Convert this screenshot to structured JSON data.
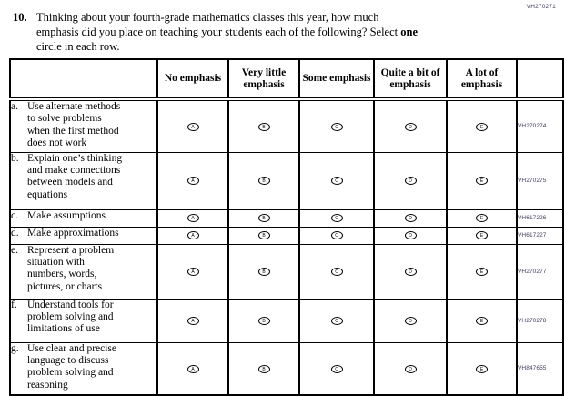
{
  "page": {
    "top_code": "VH270271",
    "question": {
      "number": "10.",
      "line1": "Thinking about your fourth-grade mathematics classes this year, how much",
      "line2_pre": "emphasis did you place on teaching your students each of the following? Select ",
      "line2_bold": "one",
      "line3": "circle in each row."
    }
  },
  "table": {
    "columns": [
      "No emphasis",
      "Very little emphasis",
      "Some emphasis",
      "Quite a bit of emphasis",
      "A lot of emphasis"
    ],
    "options": [
      "A",
      "B",
      "C",
      "D",
      "E"
    ],
    "rows": [
      {
        "letter": "a.",
        "lines": [
          "Use alternate methods",
          "to solve problems",
          "when the first method",
          "does not work"
        ],
        "text": "Use alternate methods to solve problems when the first method does not work",
        "code": "VH270274"
      },
      {
        "letter": "b.",
        "lines": [
          "Explain one’s thinking",
          "and make connections",
          "between models and",
          "equations"
        ],
        "text": "Explain one’s thinking and make connections between models and equations",
        "code": "VH270275"
      },
      {
        "letter": "c.",
        "lines": [
          "Make assumptions"
        ],
        "text": "Make assumptions",
        "code": "VH617226"
      },
      {
        "letter": "d.",
        "lines": [
          "Make approximations"
        ],
        "text": "Make approximations",
        "code": "VH617227"
      },
      {
        "letter": "e.",
        "lines": [
          "Represent a problem",
          "situation with",
          "numbers, words,",
          "pictures, or charts"
        ],
        "text": "Represent a problem situation with numbers, words, pictures, or charts",
        "code": "VH270277"
      },
      {
        "letter": "f.",
        "lines": [
          "Understand tools for",
          "problem solving and",
          "limitations of use"
        ],
        "text": "Understand tools for problem solving and limitations of use",
        "code": "VH270278"
      },
      {
        "letter": "g.",
        "lines": [
          "Use clear and precise",
          "language to discuss",
          "problem solving and",
          "reasoning"
        ],
        "text": "Use clear and precise language to discuss problem solving and reasoning",
        "code": "VH847655"
      }
    ]
  }
}
